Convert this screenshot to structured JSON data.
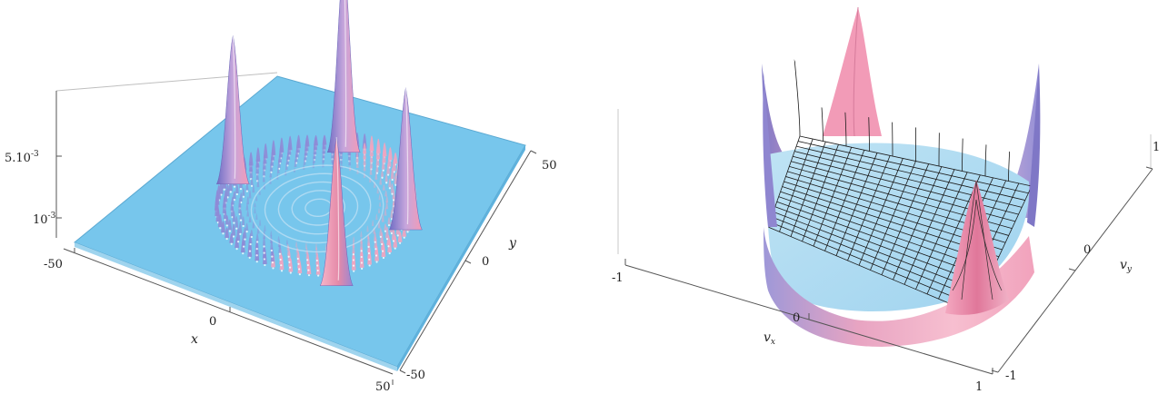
{
  "chart_data": [
    {
      "type": "surface3d",
      "title": "",
      "xlabel": "x",
      "ylabel": "y",
      "zlabel": "",
      "x_ticks": [
        "-50",
        "0",
        "50"
      ],
      "y_ticks": [
        "-50",
        "0",
        "50"
      ],
      "z_ticks": [
        {
          "mantissa": "10",
          "exp": "-3",
          "value": 0.001
        },
        {
          "mantissa": "5.10",
          "exp": "-3",
          "value": 0.005
        }
      ],
      "xlim": [
        -50,
        50
      ],
      "ylim": [
        -50,
        50
      ],
      "zlim": [
        0,
        0.006
      ],
      "ring_radius": 30,
      "peaks": [
        {
          "x": -8,
          "y": 28,
          "z": 0.0056
        },
        {
          "x": -30,
          "y": 0,
          "z": 0.0043
        },
        {
          "x": 28,
          "y": 5,
          "z": 0.0041
        },
        {
          "x": 20,
          "y": -26,
          "z": 0.0043
        }
      ],
      "colors": {
        "surface": "#77c6ec",
        "peak_low": "#7a78c8",
        "peak_high": "#f49ab6"
      }
    },
    {
      "type": "surface3d",
      "title": "",
      "xlabel": "v",
      "xlabel_sub": "x",
      "ylabel": "v",
      "ylabel_sub": "y",
      "zlabel": "",
      "x_ticks": [
        "-1",
        "0",
        "1"
      ],
      "y_ticks": [
        "-1",
        "0",
        "1"
      ],
      "xlim": [
        -1,
        1
      ],
      "ylim": [
        -1,
        1
      ],
      "colors": {
        "surface": "#b2def3",
        "wall": "#f3a5bd",
        "wall_dark": "#a39ad8",
        "mesh": "#1a1a1a"
      }
    }
  ]
}
